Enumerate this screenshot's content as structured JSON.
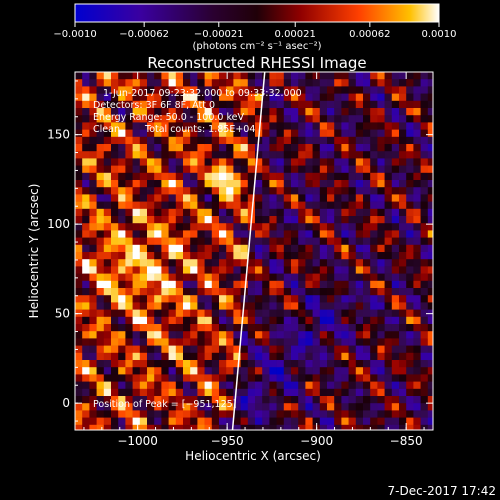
{
  "chart_data": {
    "type": "heatmap",
    "title": "Reconstructed RHESSI Image",
    "xlabel": "Heliocentric X (arcsec)",
    "ylabel": "Heliocentric Y (arcsec)",
    "xlim": [
      -1035,
      -835
    ],
    "ylim": [
      -15,
      185
    ],
    "x_ticks": [
      -1000,
      -950,
      -900,
      -850
    ],
    "x_tick_labels": [
      "−1000",
      "−950",
      "−900",
      "−850"
    ],
    "y_ticks": [
      0,
      50,
      100,
      150
    ],
    "y_tick_labels": [
      "0",
      "50",
      "100",
      "150"
    ],
    "colorbar": {
      "range": [
        -0.001,
        0.001
      ],
      "ticks": [
        -0.001,
        -0.00062,
        -0.00021,
        0.00021,
        0.00062,
        0.001
      ],
      "tick_labels": [
        "−0.0010",
        "−0.00062",
        "−0.00021",
        "0.00021",
        "0.00062",
        "0.0010"
      ],
      "units": "(photons cm⁻² s⁻¹ asec⁻²)",
      "colors": [
        "#0000c8",
        "#4b0082",
        "#1a0010",
        "#8b0000",
        "#ff4500",
        "#ffd700",
        "#ffffff"
      ]
    },
    "peak": {
      "x": -951,
      "y": 125
    },
    "limb_line": [
      [
        -947,
        -15
      ],
      [
        -929,
        185
      ]
    ],
    "annotations": {
      "time": "1-Jun-2017 09:23:32.000 to 09:33:32.000",
      "detectors": "Detectors: 3F 6F 8F, Att 0",
      "energy": "Energy Range: 50.0 - 100.0 keV",
      "method": "Clean",
      "counts": "Total counts: 1.85E+04",
      "peak_text": "Position of Peak = [−951,125]"
    },
    "footer_date": "7-Dec-2017 17:42"
  },
  "colors": {
    "background": "#000000",
    "axes": "#ffffff"
  }
}
